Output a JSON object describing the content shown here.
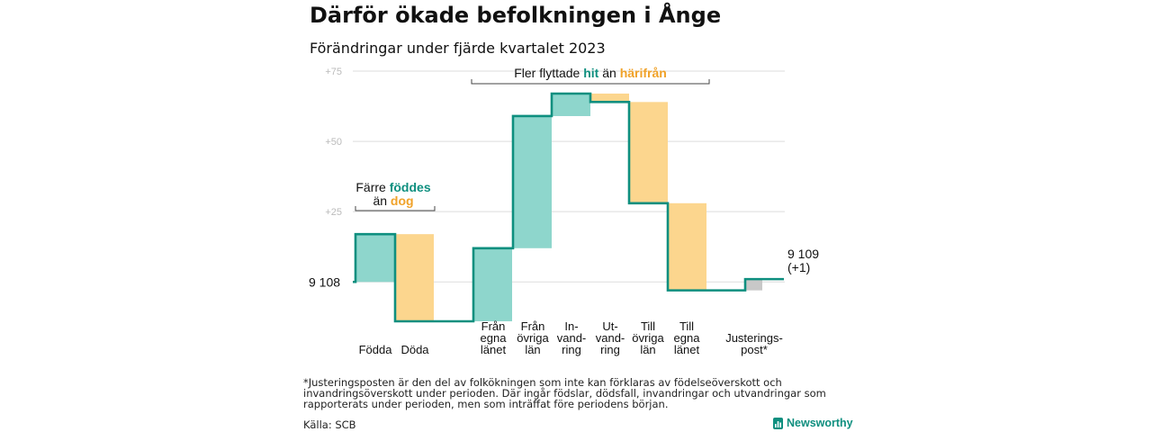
{
  "title": "Därför ökade befolkningen i Ånge",
  "subtitle": "Förändringar under fjärde kvartalet 2023",
  "chart_data": {
    "type": "waterfall",
    "start_value": 9108,
    "start_label": "9 108",
    "end_label": "9 109",
    "end_change": "(+1)",
    "y_axis": {
      "min": -6,
      "max": 75,
      "ticks": [
        {
          "value": 0,
          "label": ""
        },
        {
          "value": 25,
          "label": "+25"
        },
        {
          "value": 50,
          "label": "+50"
        },
        {
          "value": 75,
          "label": "+75"
        }
      ]
    },
    "steps": [
      {
        "lines": [
          "Födda"
        ],
        "value": 17,
        "kind": "increase"
      },
      {
        "lines": [
          "Döda"
        ],
        "value": -31,
        "kind": "decrease"
      },
      {
        "lines": [
          "Från",
          "egna",
          "länet"
        ],
        "value": 26,
        "kind": "increase"
      },
      {
        "lines": [
          "Från",
          "övriga",
          "län"
        ],
        "value": 47,
        "kind": "increase"
      },
      {
        "lines": [
          "In-",
          "vand-",
          "ring"
        ],
        "value": 8,
        "kind": "increase"
      },
      {
        "lines": [
          "Ut-",
          "vand-",
          "ring"
        ],
        "value": -3,
        "kind": "decrease"
      },
      {
        "lines": [
          "Till",
          "övriga",
          "län"
        ],
        "value": -36,
        "kind": "decrease"
      },
      {
        "lines": [
          "Till",
          "egna",
          "länet"
        ],
        "value": -31,
        "kind": "decrease"
      },
      {
        "lines": [
          "Justerings-",
          "post*"
        ],
        "value": 4,
        "kind": "adjustment"
      }
    ],
    "annotations": [
      {
        "group": "births",
        "parts": [
          [
            {
              "text": "Färre ",
              "role": "plain"
            },
            {
              "text": "föddes",
              "role": "increase"
            }
          ],
          [
            {
              "text": "än ",
              "role": "plain"
            },
            {
              "text": "dog",
              "role": "decrease"
            }
          ]
        ]
      },
      {
        "group": "migration",
        "parts": [
          [
            {
              "text": "Fler flyttade ",
              "role": "plain"
            },
            {
              "text": "hit",
              "role": "increase"
            },
            {
              "text": " än ",
              "role": "plain"
            },
            {
              "text": "härifrån",
              "role": "decrease"
            }
          ]
        ]
      }
    ],
    "colors": {
      "increase": "#8ed6cc",
      "decrease": "#fcd68e",
      "adjustment": "#c8c8c8",
      "line": "#0e8f7f",
      "increase_text": "#0e8f7f",
      "decrease_text": "#f0a229",
      "grid": "#dddddd",
      "tick_text": "#bbbbbb"
    }
  },
  "footnote": "*Justeringsposten är den del av folkökningen som inte kan förklaras av födelseöverskott och invandringsöverskott under perioden. Där ingår födslar, dödsfall, invandringar och utvandringar som rapporterats under perioden, men som inträffat före periodens början.",
  "source": "Källa: SCB",
  "logo": {
    "text": "Newsworthy",
    "icon": "newsworthy-bar-icon"
  }
}
